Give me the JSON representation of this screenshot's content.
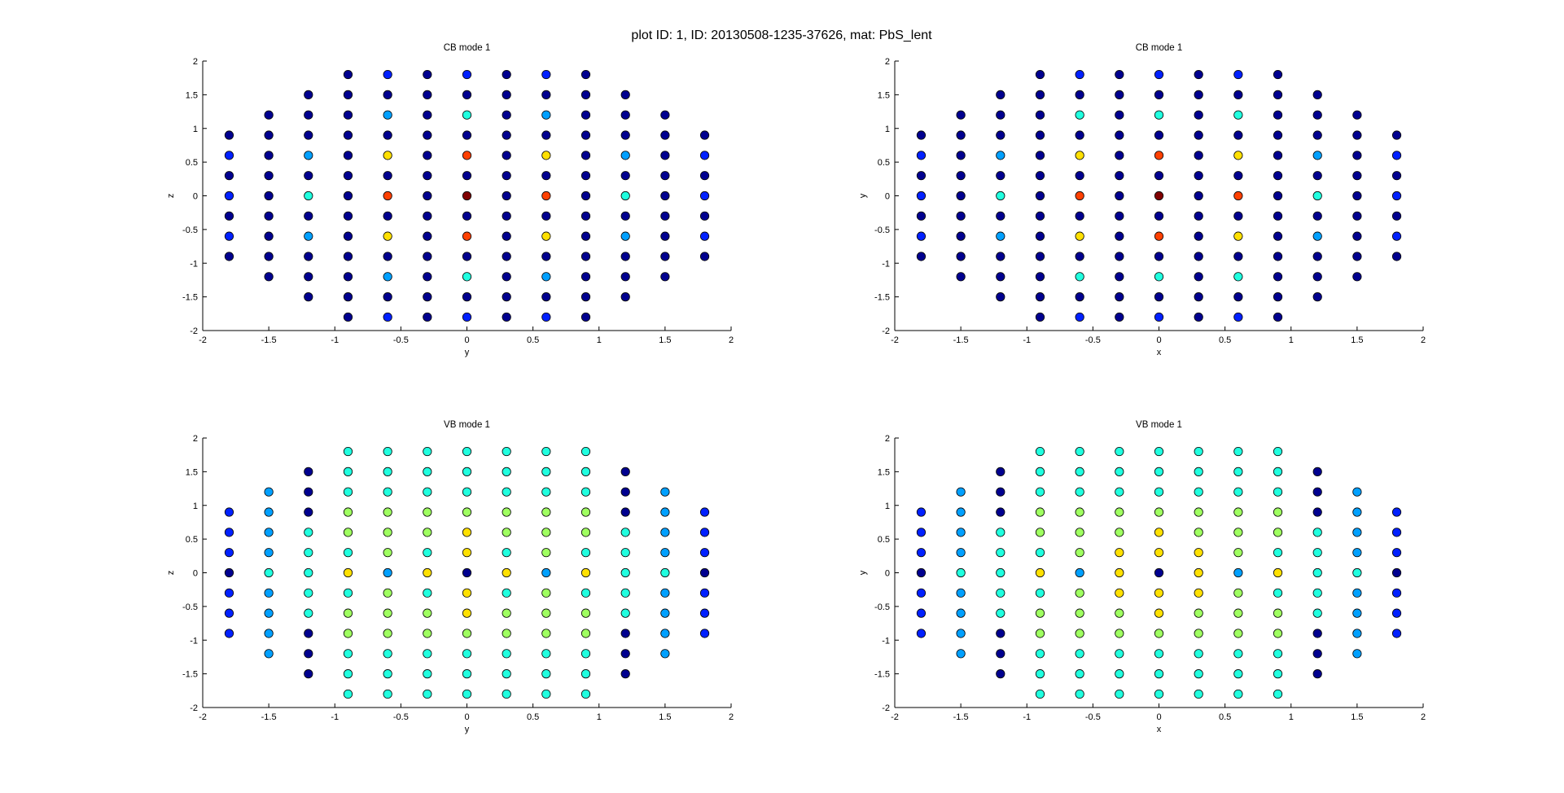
{
  "suptitle": "plot ID: 1, ID: 20130508-1235-37626, mat: PbS_lent",
  "chart_data": [
    {
      "type": "scatter",
      "title": "CB mode 1",
      "xlabel": "y",
      "ylabel": "z",
      "xlim": [
        -2,
        2
      ],
      "ylim": [
        -2,
        2
      ],
      "xticks": [
        "-2",
        "-1.5",
        "-1",
        "-0.5",
        "0",
        "0.5",
        "1",
        "1.5",
        "2"
      ],
      "yticks": [
        "-2",
        "-1.5",
        "-1",
        "-0.5",
        "0",
        "0.5",
        "1",
        "1.5",
        "2"
      ],
      "grid": false,
      "pattern": "cb_yz"
    },
    {
      "type": "scatter",
      "title": "CB mode 1",
      "xlabel": "x",
      "ylabel": "y",
      "xlim": [
        -2,
        2
      ],
      "ylim": [
        -2,
        2
      ],
      "xticks": [
        "-2",
        "-1.5",
        "-1",
        "-0.5",
        "0",
        "0.5",
        "1",
        "1.5",
        "2"
      ],
      "yticks": [
        "-2",
        "-1.5",
        "-1",
        "-0.5",
        "0",
        "0.5",
        "1",
        "1.5",
        "2"
      ],
      "grid": false,
      "pattern": "cb_xy"
    },
    {
      "type": "scatter",
      "title": "VB mode 1",
      "xlabel": "y",
      "ylabel": "z",
      "xlim": [
        -2,
        2
      ],
      "ylim": [
        -2,
        2
      ],
      "xticks": [
        "-2",
        "-1.5",
        "-1",
        "-0.5",
        "0",
        "0.5",
        "1",
        "1.5",
        "2"
      ],
      "yticks": [
        "-2",
        "-1.5",
        "-1",
        "-0.5",
        "0",
        "0.5",
        "1",
        "1.5",
        "2"
      ],
      "grid": false,
      "pattern": "vb_yz"
    },
    {
      "type": "scatter",
      "title": "VB mode 1",
      "xlabel": "x",
      "ylabel": "y",
      "xlim": [
        -2,
        2
      ],
      "ylim": [
        -2,
        2
      ],
      "xticks": [
        "-2",
        "-1.5",
        "-1",
        "-0.5",
        "0",
        "0.5",
        "1",
        "1.5",
        "2"
      ],
      "yticks": [
        "-2",
        "-1.5",
        "-1",
        "-0.5",
        "0",
        "0.5",
        "1",
        "1.5",
        "2"
      ],
      "grid": false,
      "pattern": "vb_xy"
    }
  ],
  "colors": {
    "jet": [
      "#00008f",
      "#0020ff",
      "#00a0ff",
      "#20ffdf",
      "#9fff60",
      "#ffe000",
      "#ff4000",
      "#800000"
    ],
    "marker_edge": "#000000"
  }
}
